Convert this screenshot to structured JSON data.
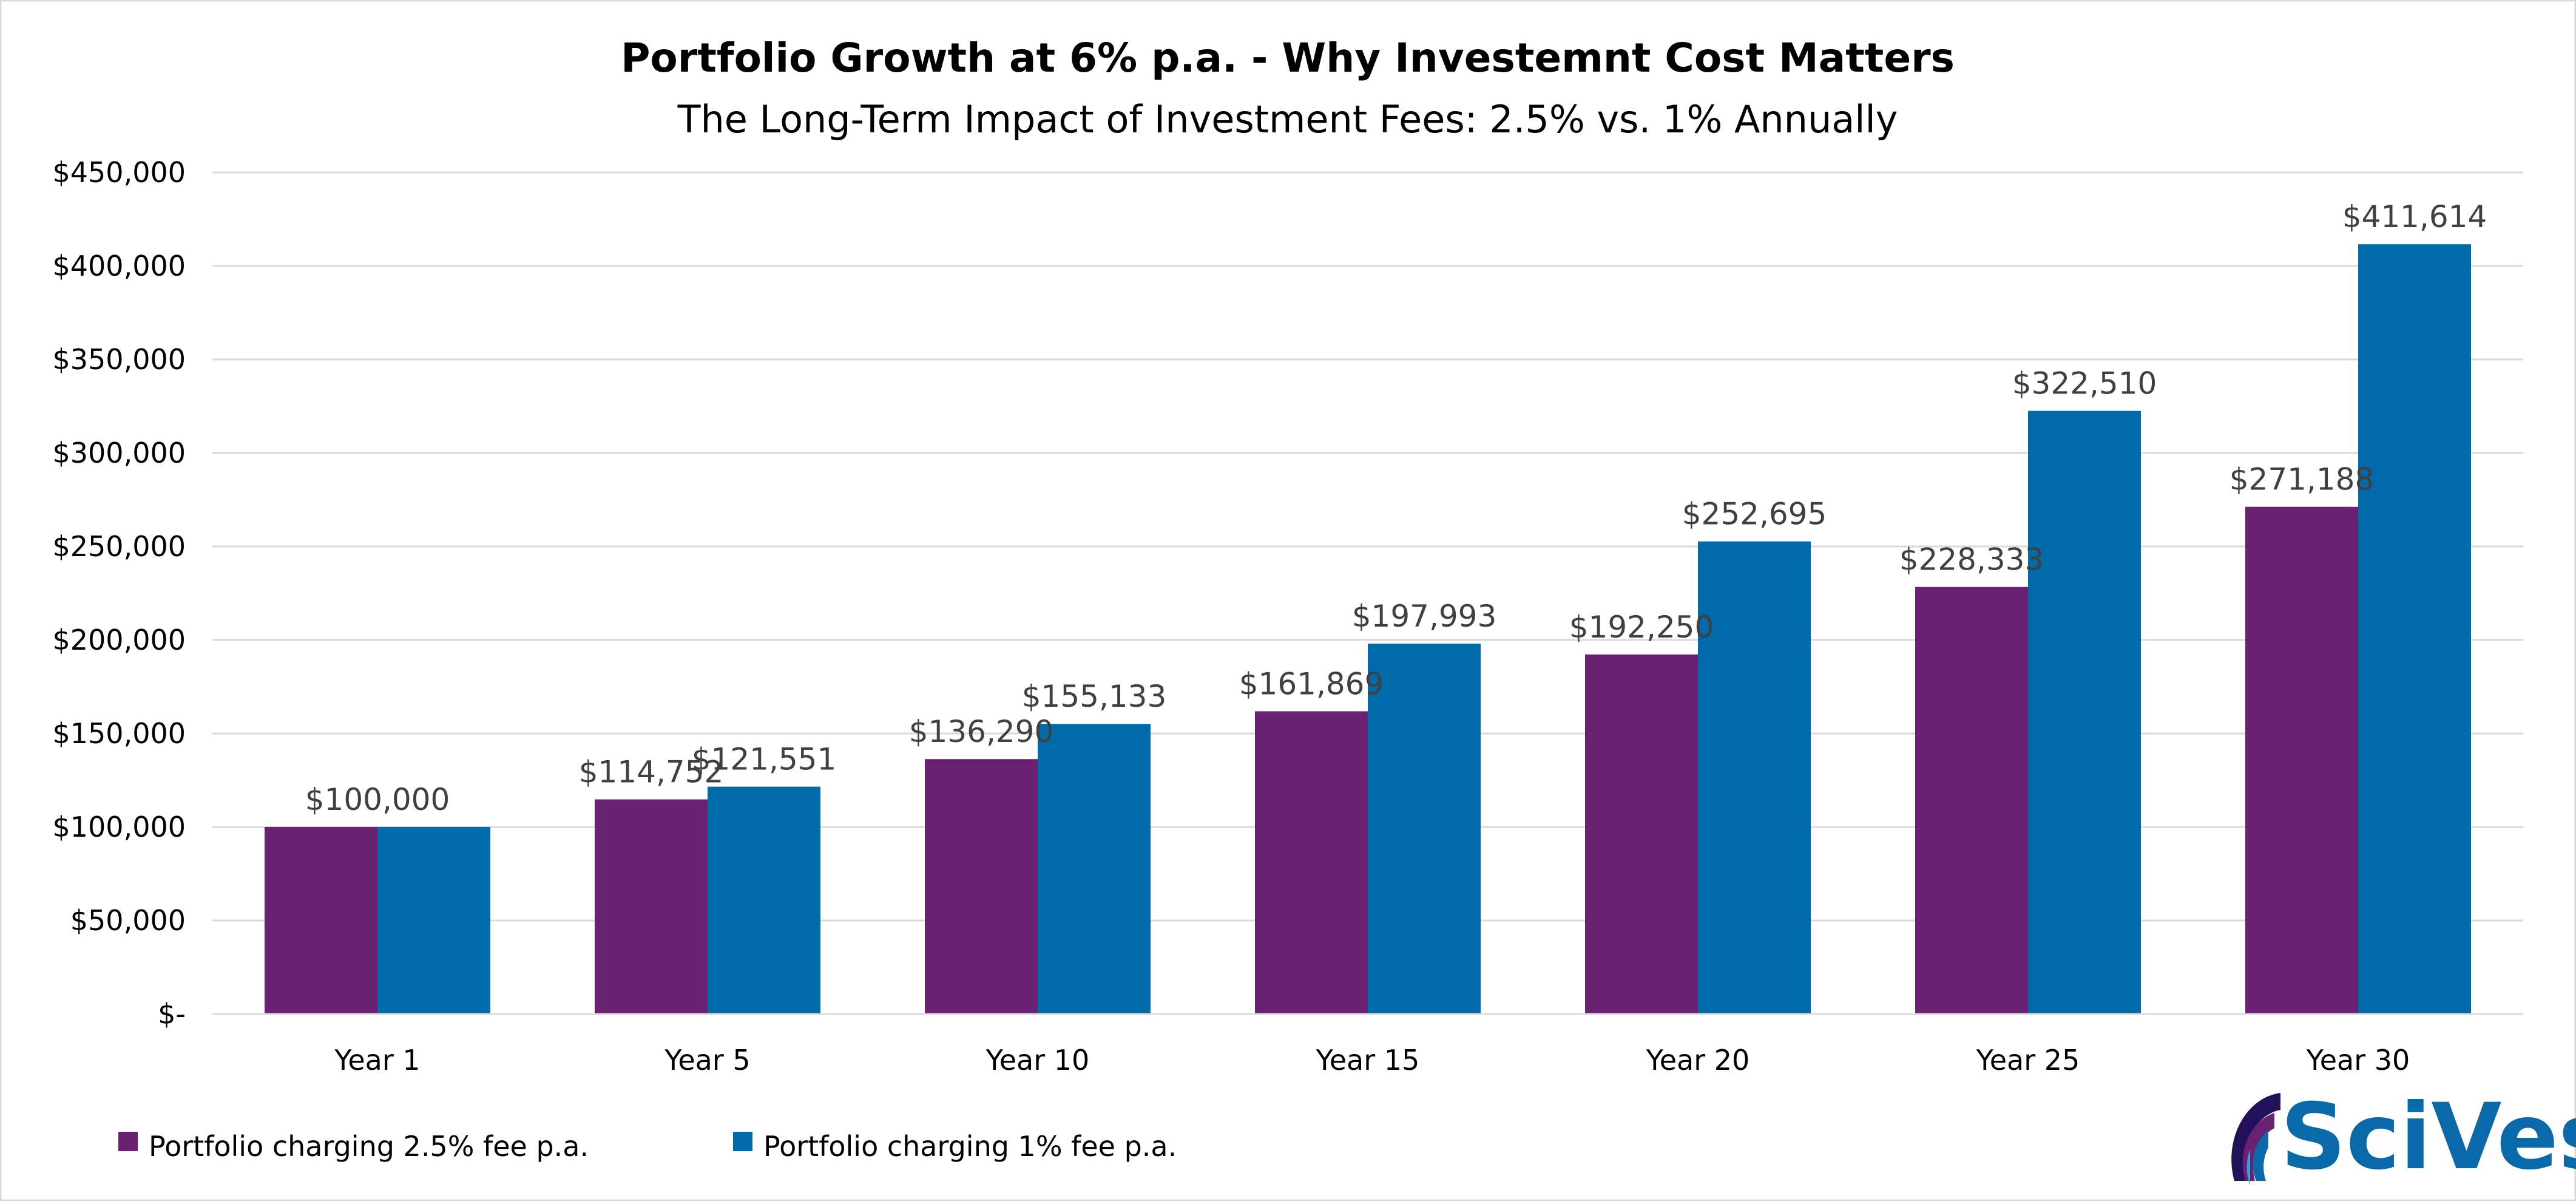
{
  "chart_data": {
    "type": "bar",
    "title": "Portfolio Growth at 6% p.a. - Why Investemnt Cost Matters",
    "subtitle": "The Long-Term Impact of Investment Fees: 2.5% vs. 1% Annually",
    "xlabel": "",
    "ylabel": "",
    "categories": [
      "Year 1",
      "Year 5",
      "Year 10",
      "Year 15",
      "Year 20",
      "Year 25",
      "Year 30"
    ],
    "series": [
      {
        "name": "Portfolio charging 2.5% fee p.a.",
        "color": "#6A2172",
        "values": [
          100000,
          114752,
          136290,
          161869,
          192250,
          228333,
          271188
        ],
        "labels": [
          "",
          "$114,752",
          "$136,290",
          "$161,869",
          "$192,250",
          "$228,333",
          "$271,188"
        ]
      },
      {
        "name": "Portfolio charging 1% fee p.a.",
        "color": "#006BAB",
        "values": [
          100000,
          121551,
          155133,
          197993,
          252695,
          322510,
          411614
        ],
        "labels": [
          "",
          "$121,551",
          "$155,133",
          "$197,993",
          "$252,695",
          "$322,510",
          "$411,614"
        ]
      }
    ],
    "shared_labels": [
      "$100,000",
      "",
      "",
      "",
      "",
      "",
      ""
    ],
    "ylim": [
      0,
      450000
    ],
    "yticks": [
      0,
      50000,
      100000,
      150000,
      200000,
      250000,
      300000,
      350000,
      400000,
      450000
    ],
    "ytick_labels": [
      "$-",
      "$50,000",
      "$100,000",
      "$150,000",
      "$200,000",
      "$250,000",
      "$300,000",
      "$350,000",
      "$400,000",
      "$450,000"
    ],
    "grid": true,
    "legend_position": "bottom-left"
  },
  "logo": {
    "text": "SciVest",
    "icon": "scivest-arcs-logo"
  }
}
